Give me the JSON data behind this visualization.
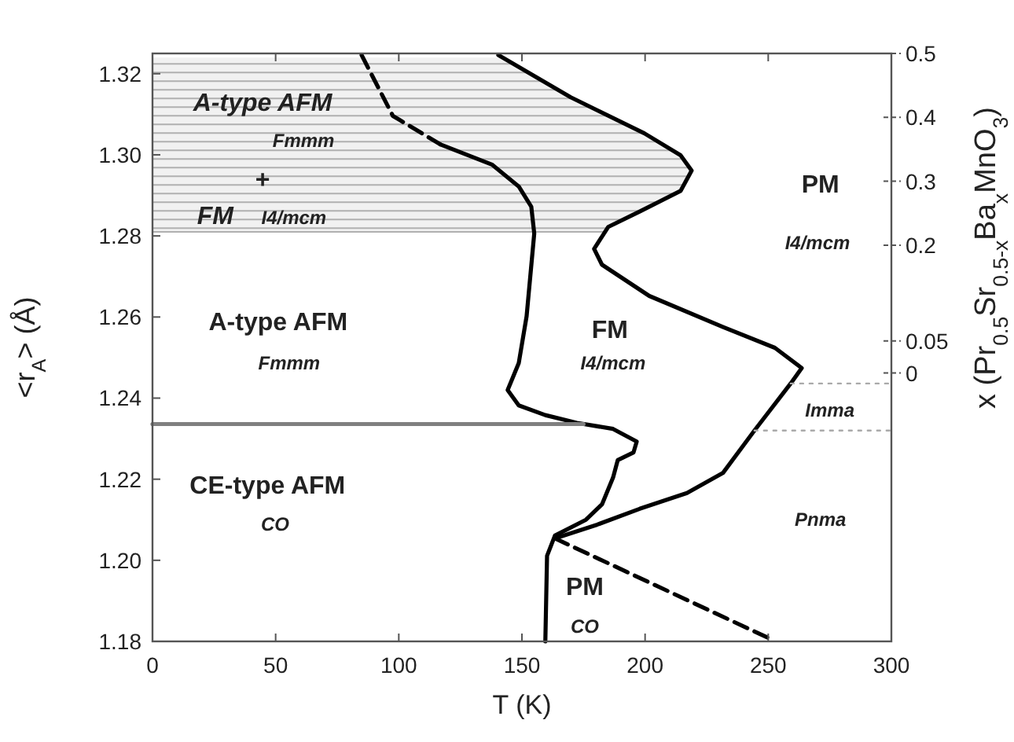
{
  "chart_data": {
    "type": "line",
    "xlabel": "T (K)",
    "ylabel": "<r$_{A}$> (Å)",
    "y2label": "x (Pr$_{0.5}$Sr$_{0.5-x}$Ba$_{x}$MnO$_{3}$)",
    "xlim": [
      0,
      300
    ],
    "xticks": [
      0,
      50,
      100,
      150,
      200,
      250,
      300
    ],
    "ylim": [
      1.18,
      1.325
    ],
    "yticks": [
      1.18,
      {
        "value": 1.2,
        "label": "1.20"
      },
      1.22,
      1.24,
      1.26,
      1.28,
      {
        "value": 1.3,
        "label": "1.30"
      },
      1.32
    ],
    "grid": false,
    "marker": "none",
    "y2lim": [
      -0.42,
      0.5
    ],
    "y2ticks": [
      0.5,
      0.4,
      0.3,
      0.2,
      0.05,
      0
    ],
    "bands": [
      {
        "axis": "y",
        "from": 1.281,
        "to": 1.324,
        "color": "#b0b0b0"
      }
    ],
    "series": [
      {
        "color": "#000000",
        "line_style": "dashed",
        "x": [
          84.9,
          97.6,
          116.8
        ],
        "values": [
          1.3246,
          1.3096,
          1.3026
        ]
      },
      {
        "color": "#000000",
        "line_style": "solid",
        "x": [
          116.8,
          137.8,
          148.7,
          153.8,
          155,
          151.9,
          148.7,
          144.2,
          148.7,
          159.5,
          172.3,
          187,
          196.6,
          195.3,
          188.9,
          187,
          182.5,
          176,
          163.4,
          160.2,
          159.5
        ],
        "values": [
          1.3026,
          1.2976,
          1.2922,
          1.2872,
          1.2806,
          1.2602,
          1.2486,
          1.242,
          1.2382,
          1.2358,
          1.2339,
          1.2324,
          1.2293,
          1.2266,
          1.2247,
          1.2204,
          1.2138,
          1.21,
          1.2061,
          1.2011,
          1.18
        ]
      },
      {
        "color": "#000000",
        "line_style": "solid",
        "x": [
          140.4,
          169.8,
          199.7,
          214.4,
          218.9,
          214.4,
          197.8,
          185,
          179.3,
          182.5,
          201.7,
          231.7,
          252.7,
          263.6,
          259.1,
          244.4,
          231.7,
          217,
          197.8,
          180.6,
          163.4
        ],
        "values": [
          1.3246,
          1.3142,
          1.3053,
          1.2999,
          1.2961,
          1.2911,
          1.286,
          1.2822,
          1.2768,
          1.2729,
          1.2652,
          1.2575,
          1.2524,
          1.2474,
          1.2436,
          1.232,
          1.2216,
          1.2166,
          1.2127,
          1.2088,
          1.2054
        ]
      },
      {
        "color": "#000000",
        "line_style": "dashed",
        "x": [
          163.4,
          252
        ],
        "values": [
          1.2054,
          1.1803
        ]
      },
      {
        "color": "#808080",
        "line_style": "solid",
        "x": [
          0,
          175
        ],
        "values": [
          1.2336,
          1.2336
        ]
      },
      {
        "color": "#aaaaaa",
        "line_style": "dotted",
        "x": [
          259.1,
          300
        ],
        "values": [
          1.2436,
          1.2436
        ]
      },
      {
        "color": "#aaaaaa",
        "line_style": "dotted",
        "x": [
          244.4,
          300
        ],
        "values": [
          1.232,
          1.232
        ]
      }
    ],
    "annotations": [
      "Fmmm",
      "A-type AFM",
      "I4/mcm",
      "FM",
      "Fmmm",
      "A-type AFM",
      "CO",
      "CE-type AFM",
      "I4/mcm",
      "FM",
      "I4/mcm",
      "PM",
      "CO",
      "PM",
      "Imma",
      "+",
      "Pnma"
    ]
  }
}
